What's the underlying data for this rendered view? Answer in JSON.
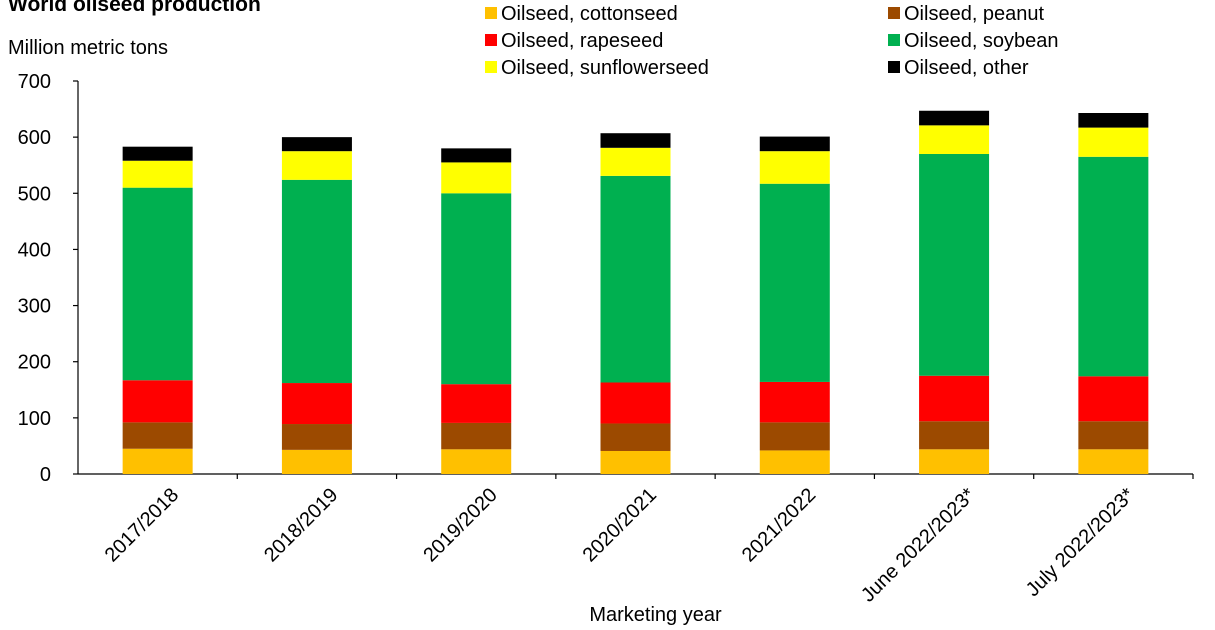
{
  "chart_data": {
    "type": "bar",
    "stacked": true,
    "title": "World oilseed production",
    "ylabel": "Million metric tons",
    "xlabel": "Marketing year",
    "ylim": [
      0,
      700
    ],
    "yticks": [
      0,
      100,
      200,
      300,
      400,
      500,
      600,
      700
    ],
    "grid": false,
    "legend_position": "top",
    "categories": [
      "2017/2018",
      "2018/2019",
      "2019/2020",
      "2020/2021",
      "2021/2022",
      "June 2022/2023*",
      "July 2022/2023*"
    ],
    "series": [
      {
        "name": "Oilseed, cottonseed",
        "color": "#FFC000",
        "values": [
          45,
          43,
          44,
          41,
          42,
          44,
          44
        ]
      },
      {
        "name": "Oilseed, peanut",
        "color": "#9C4A00",
        "values": [
          47,
          46,
          47,
          49,
          50,
          50,
          50
        ]
      },
      {
        "name": "Oilseed, rapeseed",
        "color": "#FF0000",
        "values": [
          75,
          73,
          69,
          73,
          72,
          81,
          80
        ]
      },
      {
        "name": "Oilseed, soybean",
        "color": "#00B050",
        "values": [
          343,
          362,
          340,
          368,
          353,
          395,
          391
        ]
      },
      {
        "name": "Oilseed, sunflowerseed",
        "color": "#FFFF00",
        "values": [
          48,
          51,
          55,
          50,
          58,
          51,
          52
        ]
      },
      {
        "name": "Oilseed, other",
        "color": "#000000",
        "values": [
          25,
          25,
          25,
          26,
          26,
          26,
          26
        ]
      }
    ]
  }
}
